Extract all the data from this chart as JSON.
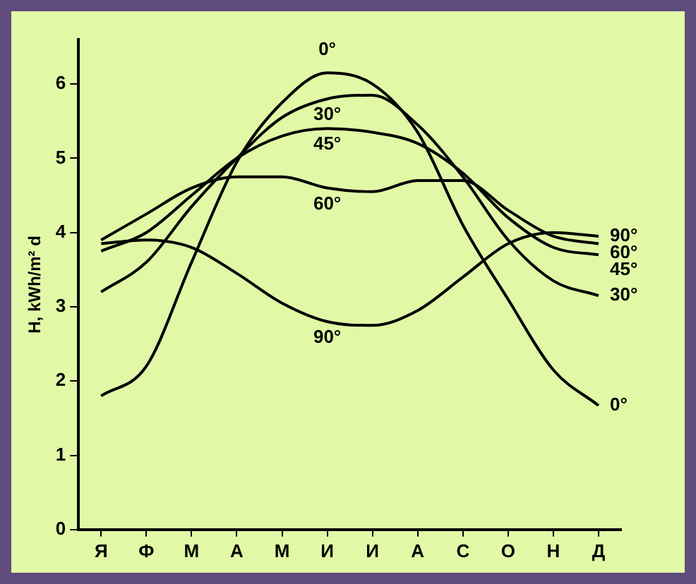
{
  "chart_data": {
    "type": "line",
    "ylabel": "H, kWh/m² d",
    "categories": [
      "Я",
      "Ф",
      "М",
      "А",
      "М",
      "И",
      "И",
      "А",
      "С",
      "О",
      "Н",
      "Д"
    ],
    "series": [
      {
        "name": "0°",
        "color": "#000000",
        "values": [
          1.8,
          2.2,
          3.6,
          4.95,
          5.75,
          6.15,
          6.0,
          5.35,
          4.1,
          3.1,
          2.15,
          1.67
        ]
      },
      {
        "name": "30°",
        "color": "#000000",
        "values": [
          3.2,
          3.6,
          4.35,
          5.0,
          5.55,
          5.8,
          5.85,
          5.45,
          4.75,
          3.9,
          3.35,
          3.15
        ]
      },
      {
        "name": "45°",
        "color": "#000000",
        "values": [
          3.75,
          4.0,
          4.5,
          5.0,
          5.3,
          5.4,
          5.35,
          5.2,
          4.8,
          4.2,
          3.8,
          3.7
        ]
      },
      {
        "name": "60°",
        "color": "#000000",
        "values": [
          3.9,
          4.25,
          4.6,
          4.75,
          4.75,
          4.6,
          4.55,
          4.7,
          4.7,
          4.3,
          3.95,
          3.85
        ]
      },
      {
        "name": "90°",
        "color": "#000000",
        "values": [
          3.85,
          3.9,
          3.8,
          3.45,
          3.05,
          2.8,
          2.75,
          2.95,
          3.4,
          3.85,
          4.0,
          3.95
        ]
      }
    ],
    "ylim": [
      0,
      6.6
    ],
    "yticks": [
      0,
      1,
      2,
      3,
      4,
      5,
      6
    ],
    "grid": false,
    "legend": false,
    "marker": "none",
    "line_style": "solid"
  }
}
